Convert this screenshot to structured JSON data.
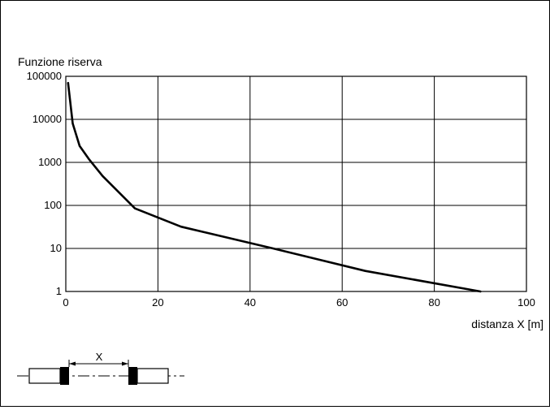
{
  "chart_data": {
    "type": "line",
    "ylabel": "Funzione riserva",
    "xlabel": "distanza X [m]",
    "xlim": [
      0,
      100
    ],
    "ylim": [
      1,
      100000
    ],
    "yscale": "log",
    "grid": true,
    "x_ticks": [
      0,
      20,
      40,
      60,
      80,
      100
    ],
    "x_tick_labels": [
      "0",
      "20",
      "40",
      "60",
      "80",
      "100"
    ],
    "y_ticks": [
      1,
      10,
      100,
      1000,
      10000,
      100000
    ],
    "y_tick_labels": [
      "1",
      "10",
      "100",
      "1000",
      "10000",
      "100000"
    ],
    "series": [
      {
        "x": [
          0.5,
          1.5,
          3,
          5,
          8,
          15,
          25,
          45,
          65,
          90
        ],
        "y": [
          70000,
          8000,
          2400,
          1200,
          480,
          85,
          32,
          10,
          3,
          1
        ]
      }
    ],
    "colors": {
      "line": "#000000",
      "grid": "#000000",
      "frame": "#000000"
    }
  },
  "diagram": {
    "dimension_label": "X"
  }
}
